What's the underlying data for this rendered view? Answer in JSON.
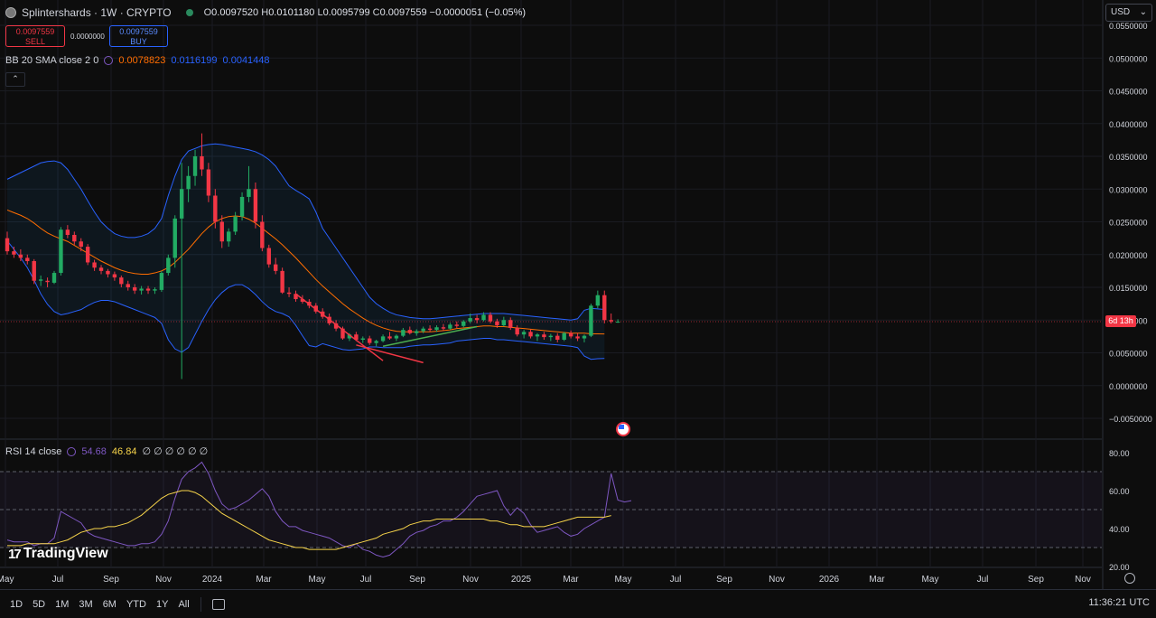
{
  "header": {
    "symbol_title": "Splintershards · 1W · CRYPTO",
    "ohlc": {
      "o_label": "O",
      "o": "0.0097520",
      "h_label": "H",
      "h": "0.0101180",
      "l_label": "L",
      "l": "0.0095799",
      "c_label": "C",
      "c": "0.0097559",
      "change": "−0.0000051 (−0.05%)"
    },
    "sell_price": "0.0097559",
    "sell_label": "SELL",
    "spread": "0.0000000",
    "buy_price": "0.0097559",
    "buy_label": "BUY",
    "collapse_icon": "chevron-up-icon"
  },
  "bb_legend": {
    "name": "BB 20 SMA close 2 0",
    "basis": "0.0078823",
    "upper": "0.0116199",
    "lower": "0.0041448"
  },
  "rsi_legend": {
    "name": "RSI 14 close",
    "rsi": "54.68",
    "ma": "46.84",
    "empties": "∅ ∅ ∅ ∅ ∅ ∅"
  },
  "currency": {
    "label": "USD",
    "caret": "⌄"
  },
  "countdown": "6d 13h",
  "logo": {
    "mark": "17",
    "text": "TradingView"
  },
  "bottom": {
    "ranges": [
      "1D",
      "5D",
      "1M",
      "3M",
      "6M",
      "YTD",
      "1Y",
      "All"
    ],
    "clock": "11:36:21 UTC"
  },
  "colors": {
    "up": "#089981",
    "down": "#f23645",
    "bb_band": "#2962ff",
    "bb_basis": "#ff6d00",
    "rsi": "#7e57c2",
    "rsi_ma": "#f7d44a",
    "trend_red": "#f23645",
    "trend_green": "#4caf50"
  },
  "chart_data": [
    {
      "type": "candlestick",
      "title": "Splintershards · 1W · CRYPTO",
      "y_ticks": [
        "0.0550000",
        "0.0500000",
        "0.0450000",
        "0.0400000",
        "0.0350000",
        "0.0300000",
        "0.0250000",
        "0.0200000",
        "0.0150000",
        "0.0100000",
        "0.0050000",
        "0.0000000",
        "−0.0050000"
      ],
      "x_ticks": [
        "May",
        "Jul",
        "Sep",
        "Nov",
        "2024",
        "Mar",
        "May",
        "Jul",
        "Sep",
        "Nov",
        "2025",
        "Mar",
        "May",
        "Jul",
        "Sep",
        "Nov",
        "2026",
        "Mar",
        "May",
        "Jul",
        "Sep",
        "Nov"
      ],
      "ylim": [
        -0.0065,
        0.057
      ],
      "candles": [
        [
          0.0225,
          0.0235,
          0.02,
          0.0205
        ],
        [
          0.0205,
          0.0212,
          0.0195,
          0.02
        ],
        [
          0.02,
          0.0208,
          0.019,
          0.0195
        ],
        [
          0.0195,
          0.02,
          0.0185,
          0.019
        ],
        [
          0.019,
          0.0193,
          0.0155,
          0.016
        ],
        [
          0.016,
          0.0168,
          0.0152,
          0.0162
        ],
        [
          0.016,
          0.0165,
          0.015,
          0.0158
        ],
        [
          0.0157,
          0.0175,
          0.0155,
          0.0172
        ],
        [
          0.0172,
          0.0242,
          0.0168,
          0.0238
        ],
        [
          0.0238,
          0.0245,
          0.0225,
          0.023
        ],
        [
          0.023,
          0.0235,
          0.0215,
          0.022
        ],
        [
          0.022,
          0.0225,
          0.0205,
          0.0212
        ],
        [
          0.0212,
          0.0216,
          0.0184,
          0.0188
        ],
        [
          0.0188,
          0.0192,
          0.0175,
          0.018
        ],
        [
          0.018,
          0.0184,
          0.017,
          0.0175
        ],
        [
          0.0175,
          0.0178,
          0.0165,
          0.017
        ],
        [
          0.017,
          0.0174,
          0.016,
          0.0165
        ],
        [
          0.0165,
          0.0168,
          0.015,
          0.0155
        ],
        [
          0.0155,
          0.016,
          0.0145,
          0.015
        ],
        [
          0.015,
          0.0155,
          0.014,
          0.0145
        ],
        [
          0.0145,
          0.0152,
          0.0139,
          0.0148
        ],
        [
          0.0148,
          0.0152,
          0.014,
          0.0145
        ],
        [
          0.0145,
          0.015,
          0.014,
          0.0147
        ],
        [
          0.0146,
          0.0175,
          0.0143,
          0.0172
        ],
        [
          0.0172,
          0.02,
          0.0168,
          0.0195
        ],
        [
          0.0195,
          0.026,
          0.018,
          0.0255
        ],
        [
          0.0255,
          0.034,
          0.001,
          0.03
        ],
        [
          0.03,
          0.0335,
          0.028,
          0.032
        ],
        [
          0.032,
          0.036,
          0.0305,
          0.035
        ],
        [
          0.035,
          0.0385,
          0.032,
          0.033
        ],
        [
          0.033,
          0.034,
          0.028,
          0.029
        ],
        [
          0.029,
          0.03,
          0.024,
          0.025
        ],
        [
          0.025,
          0.026,
          0.021,
          0.022
        ],
        [
          0.022,
          0.024,
          0.0212,
          0.0235
        ],
        [
          0.0235,
          0.0265,
          0.023,
          0.0258
        ],
        [
          0.0258,
          0.0295,
          0.0252,
          0.0288
        ],
        [
          0.0288,
          0.0335,
          0.028,
          0.03
        ],
        [
          0.03,
          0.031,
          0.024,
          0.025
        ],
        [
          0.025,
          0.026,
          0.0205,
          0.021
        ],
        [
          0.021,
          0.0215,
          0.018,
          0.0185
        ],
        [
          0.0185,
          0.0195,
          0.017,
          0.0175
        ],
        [
          0.0175,
          0.018,
          0.014,
          0.0142
        ],
        [
          0.0142,
          0.015,
          0.0135,
          0.014
        ],
        [
          0.014,
          0.0145,
          0.0128,
          0.0132
        ],
        [
          0.0132,
          0.0138,
          0.0125,
          0.0128
        ],
        [
          0.0128,
          0.0132,
          0.0118,
          0.0122
        ],
        [
          0.0122,
          0.0126,
          0.011,
          0.0113
        ],
        [
          0.0113,
          0.0118,
          0.0102,
          0.0105
        ],
        [
          0.0105,
          0.011,
          0.0092,
          0.0095
        ],
        [
          0.0095,
          0.01,
          0.0083,
          0.0087
        ],
        [
          0.0087,
          0.009,
          0.007,
          0.0072
        ],
        [
          0.0072,
          0.008,
          0.0068,
          0.0078
        ],
        [
          0.0078,
          0.0082,
          0.0068,
          0.007
        ],
        [
          0.007,
          0.0075,
          0.0065,
          0.0072
        ],
        [
          0.0072,
          0.0076,
          0.0062,
          0.0065
        ],
        [
          0.0065,
          0.007,
          0.006,
          0.0068
        ],
        [
          0.0068,
          0.0078,
          0.0066,
          0.0075
        ],
        [
          0.0075,
          0.0082,
          0.007,
          0.0072
        ],
        [
          0.0072,
          0.0078,
          0.0068,
          0.0076
        ],
        [
          0.0076,
          0.0088,
          0.0074,
          0.0085
        ],
        [
          0.0085,
          0.009,
          0.0078,
          0.008
        ],
        [
          0.008,
          0.0086,
          0.0076,
          0.0083
        ],
        [
          0.0083,
          0.009,
          0.008,
          0.0087
        ],
        [
          0.0087,
          0.0092,
          0.0082,
          0.0085
        ],
        [
          0.0085,
          0.0092,
          0.0082,
          0.0089
        ],
        [
          0.0089,
          0.0094,
          0.0084,
          0.0087
        ],
        [
          0.0087,
          0.0096,
          0.0085,
          0.0093
        ],
        [
          0.0093,
          0.0098,
          0.0088,
          0.0091
        ],
        [
          0.0091,
          0.01,
          0.0089,
          0.0098
        ],
        [
          0.0098,
          0.011,
          0.0095,
          0.0103
        ],
        [
          0.0103,
          0.0108,
          0.0095,
          0.01
        ],
        [
          0.01,
          0.0112,
          0.0098,
          0.0108
        ],
        [
          0.0108,
          0.0112,
          0.0095,
          0.0098
        ],
        [
          0.0098,
          0.0102,
          0.0088,
          0.0092
        ],
        [
          0.0092,
          0.0105,
          0.009,
          0.01
        ],
        [
          0.01,
          0.0104,
          0.0085,
          0.0088
        ],
        [
          0.0088,
          0.0092,
          0.0075,
          0.0078
        ],
        [
          0.0078,
          0.0085,
          0.0072,
          0.0082
        ],
        [
          0.0082,
          0.0086,
          0.0072,
          0.0075
        ],
        [
          0.0075,
          0.008,
          0.0068,
          0.0078
        ],
        [
          0.0078,
          0.0082,
          0.007,
          0.0074
        ],
        [
          0.0074,
          0.0079,
          0.0068,
          0.0076
        ],
        [
          0.0076,
          0.008,
          0.0066,
          0.007
        ],
        [
          0.007,
          0.0082,
          0.0068,
          0.008
        ],
        [
          0.008,
          0.0084,
          0.0072,
          0.0075
        ],
        [
          0.0075,
          0.008,
          0.0068,
          0.0072
        ],
        [
          0.0072,
          0.0078,
          0.0066,
          0.0076
        ],
        [
          0.0076,
          0.0125,
          0.0074,
          0.0122
        ],
        [
          0.0122,
          0.0145,
          0.0118,
          0.0138
        ],
        [
          0.0138,
          0.0145,
          0.0095,
          0.01
        ],
        [
          0.01,
          0.011,
          0.0095,
          0.0098
        ],
        [
          0.009752,
          0.010118,
          0.0095799,
          0.0097559
        ]
      ],
      "series": [
        {
          "name": "upper",
          "values": [
            0.0315,
            0.032,
            0.0325,
            0.033,
            0.0335,
            0.034,
            0.0342,
            0.0343,
            0.034,
            0.033,
            0.0315,
            0.03,
            0.0282,
            0.0265,
            0.025,
            0.024,
            0.0232,
            0.0228,
            0.0226,
            0.0226,
            0.0228,
            0.0232,
            0.024,
            0.0255,
            0.029,
            0.032,
            0.0345,
            0.0358,
            0.0362,
            0.0366,
            0.0368,
            0.0369,
            0.0368,
            0.0366,
            0.0364,
            0.0362,
            0.036,
            0.0357,
            0.0352,
            0.0345,
            0.0335,
            0.032,
            0.0305,
            0.0298,
            0.0292,
            0.0285,
            0.0265,
            0.024,
            0.0225,
            0.021,
            0.0195,
            0.018,
            0.0165,
            0.015,
            0.0135,
            0.0125,
            0.0118,
            0.0112,
            0.0108,
            0.0106,
            0.0104,
            0.0103,
            0.0102,
            0.0102,
            0.0103,
            0.0104,
            0.0105,
            0.0106,
            0.0107,
            0.0108,
            0.0109,
            0.011,
            0.011,
            0.011,
            0.011,
            0.0109,
            0.0108,
            0.0107,
            0.0106,
            0.0105,
            0.0104,
            0.0103,
            0.0102,
            0.0101,
            0.01,
            0.0102,
            0.0115,
            0.0118,
            0.0117,
            0.0116199
          ]
        },
        {
          "name": "basis",
          "values": [
            0.0268,
            0.0264,
            0.026,
            0.0255,
            0.0248,
            0.024,
            0.0233,
            0.0228,
            0.0224,
            0.022,
            0.0214,
            0.0208,
            0.0202,
            0.0196,
            0.019,
            0.0185,
            0.018,
            0.0176,
            0.0173,
            0.0171,
            0.017,
            0.017,
            0.0172,
            0.0175,
            0.018,
            0.0188,
            0.0198,
            0.0208,
            0.022,
            0.0232,
            0.0242,
            0.025,
            0.0255,
            0.0258,
            0.0259,
            0.0258,
            0.0254,
            0.0248,
            0.024,
            0.0232,
            0.0224,
            0.0215,
            0.0205,
            0.0195,
            0.0184,
            0.0173,
            0.0162,
            0.0152,
            0.0143,
            0.0134,
            0.0125,
            0.0117,
            0.011,
            0.0103,
            0.0097,
            0.0092,
            0.0088,
            0.0085,
            0.0083,
            0.0082,
            0.0082,
            0.0082,
            0.0082,
            0.0082,
            0.0083,
            0.0084,
            0.0085,
            0.0087,
            0.0088,
            0.0089,
            0.009,
            0.0091,
            0.0091,
            0.009,
            0.009,
            0.0089,
            0.0088,
            0.0087,
            0.0086,
            0.0085,
            0.0084,
            0.0083,
            0.0082,
            0.0081,
            0.008,
            0.008,
            0.008,
            0.0079,
            0.0079,
            0.0078823
          ]
        },
        {
          "name": "lower",
          "values": [
            0.0221,
            0.0208,
            0.0195,
            0.018,
            0.0161,
            0.014,
            0.0124,
            0.0113,
            0.0108,
            0.011,
            0.0113,
            0.0116,
            0.0122,
            0.0127,
            0.013,
            0.013,
            0.0128,
            0.0124,
            0.012,
            0.0116,
            0.0112,
            0.0108,
            0.0104,
            0.0095,
            0.007,
            0.0056,
            0.0051,
            0.0058,
            0.0078,
            0.0098,
            0.0116,
            0.0131,
            0.0142,
            0.015,
            0.0154,
            0.0154,
            0.0148,
            0.0139,
            0.0128,
            0.0119,
            0.0113,
            0.011,
            0.0105,
            0.0092,
            0.0076,
            0.0061,
            0.0059,
            0.0064,
            0.0061,
            0.0058,
            0.0055,
            0.0054,
            0.0055,
            0.0056,
            0.0059,
            0.0059,
            0.0058,
            0.0058,
            0.0058,
            0.0058,
            0.006,
            0.0061,
            0.0062,
            0.0062,
            0.0063,
            0.0064,
            0.0065,
            0.0068,
            0.0069,
            0.007,
            0.0071,
            0.0072,
            0.0072,
            0.007,
            0.007,
            0.0069,
            0.0068,
            0.0067,
            0.0066,
            0.0065,
            0.0064,
            0.0063,
            0.0062,
            0.0061,
            0.006,
            0.0058,
            0.0045,
            0.004,
            0.0041,
            0.0041448
          ]
        }
      ],
      "current_price": 0.0097559
    },
    {
      "type": "line",
      "title": "RSI 14 close",
      "y_ticks": [
        "80.00",
        "60.00",
        "40.00",
        "20.00"
      ],
      "ylim": [
        17.5,
        87
      ],
      "bands": [
        30,
        50,
        70
      ],
      "series": [
        {
          "name": "RSI",
          "values": [
            34,
            33,
            33,
            33,
            31,
            32,
            32,
            35,
            49,
            47,
            45,
            43,
            38,
            36,
            35,
            34,
            33,
            32,
            31,
            31,
            32,
            32,
            33,
            37,
            44,
            56,
            66,
            70,
            72,
            75,
            69,
            60,
            53,
            50,
            51,
            53,
            55,
            58,
            61,
            57,
            49,
            44,
            41,
            41,
            39,
            38,
            37,
            36,
            35,
            33,
            31,
            30,
            32,
            29,
            28,
            26,
            25,
            26,
            29,
            32,
            36,
            38,
            39,
            41,
            42,
            44,
            44,
            46,
            49,
            53,
            57,
            58,
            59,
            60,
            52,
            47,
            51,
            48,
            42,
            38,
            39,
            40,
            41,
            38,
            36,
            37,
            40,
            42,
            44,
            46,
            69,
            55,
            54,
            54.68
          ]
        },
        {
          "name": "MA",
          "values": [
            31,
            31,
            31,
            32,
            32,
            32,
            32,
            32,
            33,
            34,
            36,
            38,
            39,
            40,
            40,
            41,
            41,
            42,
            43,
            45,
            47,
            50,
            53,
            56,
            58,
            59,
            60,
            60,
            59,
            57,
            54,
            51,
            48,
            46,
            44,
            42,
            40,
            38,
            36,
            34,
            33,
            32,
            31,
            30,
            30,
            29,
            29,
            29,
            29,
            29,
            30,
            31,
            32,
            33,
            34,
            35,
            37,
            38,
            39,
            40,
            42,
            43,
            44,
            44,
            45,
            45,
            45,
            45,
            45,
            45,
            45,
            45,
            44,
            44,
            43,
            42,
            42,
            41,
            41,
            41,
            41,
            42,
            43,
            44,
            45,
            46,
            46,
            46,
            46,
            46,
            46.84
          ]
        }
      ]
    }
  ]
}
